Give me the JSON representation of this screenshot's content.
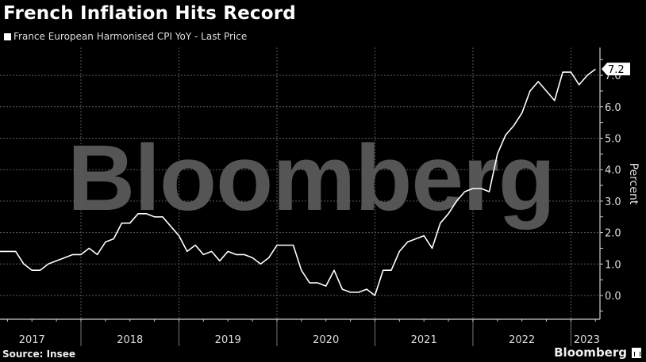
{
  "header": {
    "title": "French Inflation Hits Record",
    "legend_label": "France European Harmonised CPI YoY - Last Price"
  },
  "footer": {
    "source": "Source: Insee",
    "brand": "Bloomberg"
  },
  "watermark": "Bloomberg",
  "colors": {
    "background": "#000000",
    "line": "#ffffff",
    "grid": "#444444",
    "watermark": "#555555"
  },
  "chart_data": {
    "type": "line",
    "title": "French Inflation Hits Record",
    "legend": [
      "France European Harmonised CPI YoY - Last Price"
    ],
    "xlabel": "",
    "ylabel": "Percent",
    "ylim": [
      -0.8,
      8.0
    ],
    "yticks": [
      "0.0",
      "1.0",
      "2.0",
      "3.0",
      "4.0",
      "5.0",
      "6.0",
      "7.0"
    ],
    "xticks": [
      "2017",
      "2018",
      "2019",
      "2020",
      "2021",
      "2022",
      "2023"
    ],
    "grid": true,
    "legend_position": "top-left",
    "last_value_label": "7.2",
    "start": "2017-03",
    "frequency": "monthly",
    "series": [
      {
        "name": "France European Harmonised CPI YoY - Last Price",
        "values": [
          1.4,
          1.4,
          1.4,
          1.0,
          0.8,
          0.8,
          1.0,
          1.1,
          1.2,
          1.3,
          1.3,
          1.5,
          1.3,
          1.7,
          1.8,
          2.3,
          2.3,
          2.6,
          2.6,
          2.5,
          2.5,
          2.2,
          1.9,
          1.4,
          1.6,
          1.3,
          1.4,
          1.1,
          1.4,
          1.3,
          1.3,
          1.2,
          1.0,
          1.2,
          1.6,
          1.6,
          1.6,
          0.8,
          0.4,
          0.4,
          0.3,
          0.8,
          0.2,
          0.1,
          0.1,
          0.2,
          0.0,
          0.8,
          0.8,
          1.4,
          1.7,
          1.8,
          1.9,
          1.5,
          2.3,
          2.6,
          3.0,
          3.3,
          3.4,
          3.4,
          3.3,
          4.5,
          5.1,
          5.4,
          5.8,
          6.5,
          6.8,
          6.5,
          6.2,
          7.1,
          7.1,
          6.7,
          7.0,
          7.2
        ]
      }
    ]
  }
}
